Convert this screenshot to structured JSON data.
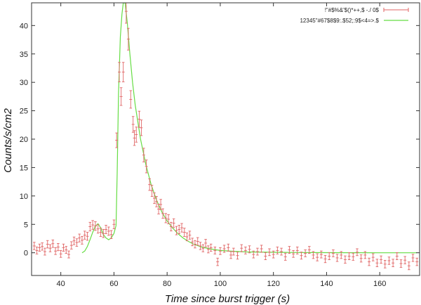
{
  "chart_data": {
    "type": "scatter",
    "xlabel": "Time since burst trigger (s)",
    "ylabel": "Counts/s/cm2",
    "xlim": [
      29,
      175
    ],
    "ylim": [
      -4,
      44
    ],
    "xticks": [
      40,
      60,
      80,
      100,
      120,
      140,
      160
    ],
    "yticks": [
      0,
      5,
      10,
      15,
      20,
      25,
      30,
      35,
      40
    ],
    "grid": false,
    "legend_position": "top-right",
    "series": [
      {
        "name": "!\"#$%&'$()*++,$ -./  0$",
        "kind": "points-with-errorbars",
        "color": "#e06666",
        "points": [
          [
            30,
            1.2
          ],
          [
            31,
            0.4
          ],
          [
            32,
            0.9
          ],
          [
            33,
            1.1
          ],
          [
            34,
            0.2
          ],
          [
            35,
            1.5
          ],
          [
            36,
            0.8
          ],
          [
            37,
            1.6
          ],
          [
            38,
            0.3
          ],
          [
            39,
            1.0
          ],
          [
            40,
            -0.2
          ],
          [
            41,
            0.9
          ],
          [
            42,
            0.5
          ],
          [
            43,
            -0.3
          ],
          [
            44,
            1.3
          ],
          [
            45,
            2.1
          ],
          [
            46,
            1.8
          ],
          [
            47,
            2.6
          ],
          [
            48,
            2.2
          ],
          [
            49,
            3.1
          ],
          [
            50,
            2.9
          ],
          [
            51,
            4.6
          ],
          [
            52,
            4.9
          ],
          [
            53,
            4.7
          ],
          [
            54,
            4.2
          ],
          [
            55,
            3.6
          ],
          [
            56,
            3.4
          ],
          [
            57,
            4.1
          ],
          [
            58,
            3.8
          ],
          [
            59,
            3.2
          ],
          [
            60,
            5.0
          ],
          [
            61,
            19.8
          ],
          [
            62,
            31.8
          ],
          [
            62.7,
            27.5
          ],
          [
            63.5,
            31.8
          ],
          [
            64.6,
            42.5
          ],
          [
            65.4,
            37.6
          ],
          [
            66.3,
            27.0
          ],
          [
            67.2,
            22.6
          ],
          [
            67.7,
            20.2
          ],
          [
            68.4,
            20.8
          ],
          [
            69.5,
            23.5
          ],
          [
            70.3,
            22.0
          ],
          [
            71.2,
            17.2
          ],
          [
            72.2,
            15.2
          ],
          [
            73.4,
            12.0
          ],
          [
            74.3,
            10.9
          ],
          [
            75.2,
            9.6
          ],
          [
            76.0,
            9.0
          ],
          [
            76.8,
            7.7
          ],
          [
            77.6,
            8.5
          ],
          [
            78.4,
            6.9
          ],
          [
            79.5,
            6.1
          ],
          [
            80.5,
            5.9
          ],
          [
            81.5,
            4.6
          ],
          [
            82.5,
            5.2
          ],
          [
            83.5,
            3.9
          ],
          [
            84.5,
            4.1
          ],
          [
            85.5,
            4.4
          ],
          [
            86.5,
            3.6
          ],
          [
            87.5,
            2.8
          ],
          [
            88.5,
            3.1
          ],
          [
            89.5,
            1.9
          ],
          [
            90.5,
            1.5
          ],
          [
            91.5,
            2.0
          ],
          [
            92.5,
            1.2
          ],
          [
            93.5,
            0.8
          ],
          [
            94.5,
            1.7
          ],
          [
            95.5,
            0.6
          ],
          [
            96.5,
            0.9
          ],
          [
            98,
            0.4
          ],
          [
            99,
            -1.6
          ],
          [
            100,
            0.3
          ],
          [
            101.5,
            0.7
          ],
          [
            103,
            0.9
          ],
          [
            104,
            -0.4
          ],
          [
            105,
            0.2
          ],
          [
            106.5,
            -0.5
          ],
          [
            108,
            0.8
          ],
          [
            109.5,
            0.4
          ],
          [
            111,
            0.6
          ],
          [
            112.5,
            -0.3
          ],
          [
            114,
            0.2
          ],
          [
            115.5,
            0.7
          ],
          [
            117,
            -0.6
          ],
          [
            118.5,
            0.1
          ],
          [
            120,
            -0.3
          ],
          [
            121.5,
            0.4
          ],
          [
            123,
            0.2
          ],
          [
            124.5,
            -0.7
          ],
          [
            126,
            0.5
          ],
          [
            127.5,
            -0.2
          ],
          [
            129,
            0.4
          ],
          [
            130.5,
            -0.5
          ],
          [
            132,
            -0.1
          ],
          [
            133.5,
            0.5
          ],
          [
            135,
            -0.4
          ],
          [
            136.5,
            -0.8
          ],
          [
            138,
            -0.3
          ],
          [
            139.5,
            -1.1
          ],
          [
            141,
            -0.6
          ],
          [
            142.5,
            -0.1
          ],
          [
            144,
            -0.9
          ],
          [
            145.5,
            -0.4
          ],
          [
            147,
            -1.2
          ],
          [
            148.5,
            -0.6
          ],
          [
            150,
            -0.7
          ],
          [
            151.5,
            0.1
          ],
          [
            153,
            -1.0
          ],
          [
            154.5,
            -0.4
          ],
          [
            156,
            -1.6
          ],
          [
            157.5,
            -0.8
          ],
          [
            159,
            -1.8
          ],
          [
            160.5,
            -1.2
          ],
          [
            162,
            -2.0
          ],
          [
            163.5,
            -1.4
          ],
          [
            165,
            -1.8
          ],
          [
            166.5,
            -0.6
          ],
          [
            168,
            -1.9
          ],
          [
            169.5,
            -1.3
          ],
          [
            171,
            -2.3
          ],
          [
            172.5,
            -0.9
          ],
          [
            174,
            -1.6
          ]
        ]
      },
      {
        "name": "12345\"#67$8$9:.$52;:9$<4=>.$",
        "kind": "line",
        "color": "#66dd44",
        "points": [
          [
            48,
            0.0
          ],
          [
            49,
            0.3
          ],
          [
            50,
            1.1
          ],
          [
            51,
            2.3
          ],
          [
            52,
            3.6
          ],
          [
            53,
            4.7
          ],
          [
            54,
            5.1
          ],
          [
            55,
            4.4
          ],
          [
            56,
            3.2
          ],
          [
            57,
            2.6
          ],
          [
            58,
            2.3
          ],
          [
            59,
            2.6
          ],
          [
            60,
            3.4
          ],
          [
            60.8,
            4.8
          ],
          [
            61.2,
            14.0
          ],
          [
            61.7,
            28.0
          ],
          [
            62.4,
            38.0
          ],
          [
            63.0,
            42.0
          ],
          [
            63.5,
            44.0
          ],
          [
            64.2,
            44.0
          ],
          [
            65,
            40.5
          ],
          [
            66,
            35.0
          ],
          [
            67,
            30.0
          ],
          [
            68,
            26.0
          ],
          [
            70,
            20.0
          ],
          [
            72,
            15.5
          ],
          [
            74,
            12.0
          ],
          [
            76,
            9.3
          ],
          [
            78,
            7.2
          ],
          [
            80,
            5.6
          ],
          [
            82,
            4.4
          ],
          [
            84,
            3.4
          ],
          [
            86,
            2.6
          ],
          [
            88,
            2.0
          ],
          [
            90,
            1.5
          ],
          [
            93,
            1.0
          ],
          [
            96,
            0.7
          ],
          [
            100,
            0.4
          ],
          [
            105,
            0.25
          ],
          [
            110,
            0.15
          ],
          [
            120,
            0.08
          ],
          [
            130,
            0.04
          ],
          [
            140,
            0.02
          ],
          [
            150,
            0.01
          ],
          [
            160,
            0.0
          ],
          [
            170,
            0.0
          ],
          [
            174,
            0.0
          ]
        ]
      }
    ]
  }
}
